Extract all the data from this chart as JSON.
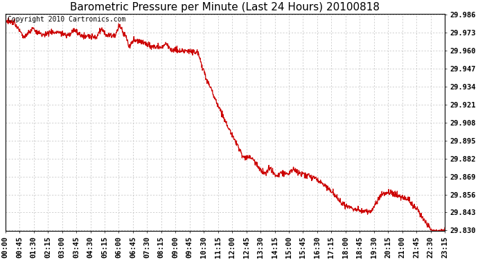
{
  "title": "Barometric Pressure per Minute (Last 24 Hours) 20100818",
  "copyright_text": "Copyright 2010 Cartronics.com",
  "line_color": "#cc0000",
  "background_color": "#ffffff",
  "grid_color": "#bbbbbb",
  "y_min": 29.8295,
  "y_max": 29.9865,
  "y_tick_values": [
    29.83,
    29.843,
    29.856,
    29.869,
    29.882,
    29.895,
    29.908,
    29.921,
    29.934,
    29.947,
    29.96,
    29.973,
    29.986
  ],
  "x_tick_labels": [
    "00:00",
    "00:45",
    "01:30",
    "02:15",
    "03:00",
    "03:45",
    "04:30",
    "05:15",
    "06:00",
    "06:45",
    "07:30",
    "08:15",
    "09:00",
    "09:45",
    "10:30",
    "11:15",
    "12:00",
    "12:45",
    "13:30",
    "14:15",
    "15:00",
    "15:45",
    "16:30",
    "17:15",
    "18:00",
    "18:45",
    "19:30",
    "20:15",
    "21:00",
    "21:45",
    "22:30",
    "23:15"
  ],
  "title_fontsize": 11,
  "label_fontsize": 7.5,
  "copyright_fontsize": 7
}
